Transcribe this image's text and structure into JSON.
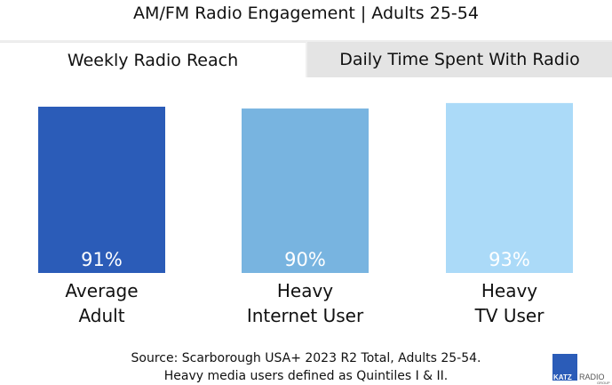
{
  "title": "AM/FM Radio Engagement | Adults 25-54",
  "tabs": [
    {
      "label": "Weekly Radio Reach",
      "active": true
    },
    {
      "label": "Daily Time Spent With Radio",
      "active": false
    }
  ],
  "chart_data": {
    "type": "bar",
    "categories": [
      [
        "Average",
        "Adult"
      ],
      [
        "Heavy",
        "Internet User"
      ],
      [
        "Heavy",
        "TV User"
      ]
    ],
    "values": [
      91,
      90,
      93
    ],
    "value_labels": [
      "91%",
      "90%",
      "93%"
    ],
    "colors": [
      "#2b5cb8",
      "#78b4e0",
      "#abdaf8"
    ],
    "ylim": [
      0,
      100
    ],
    "grid": false
  },
  "source": {
    "line1": "Source: Scarborough USA+ 2023 R2 Total, Adults 25-54.",
    "line2": "Heavy media users defined as Quintiles I & II."
  },
  "logo": {
    "katz": "KATZ",
    "radio": "RADIO",
    "group": "GROUP"
  }
}
